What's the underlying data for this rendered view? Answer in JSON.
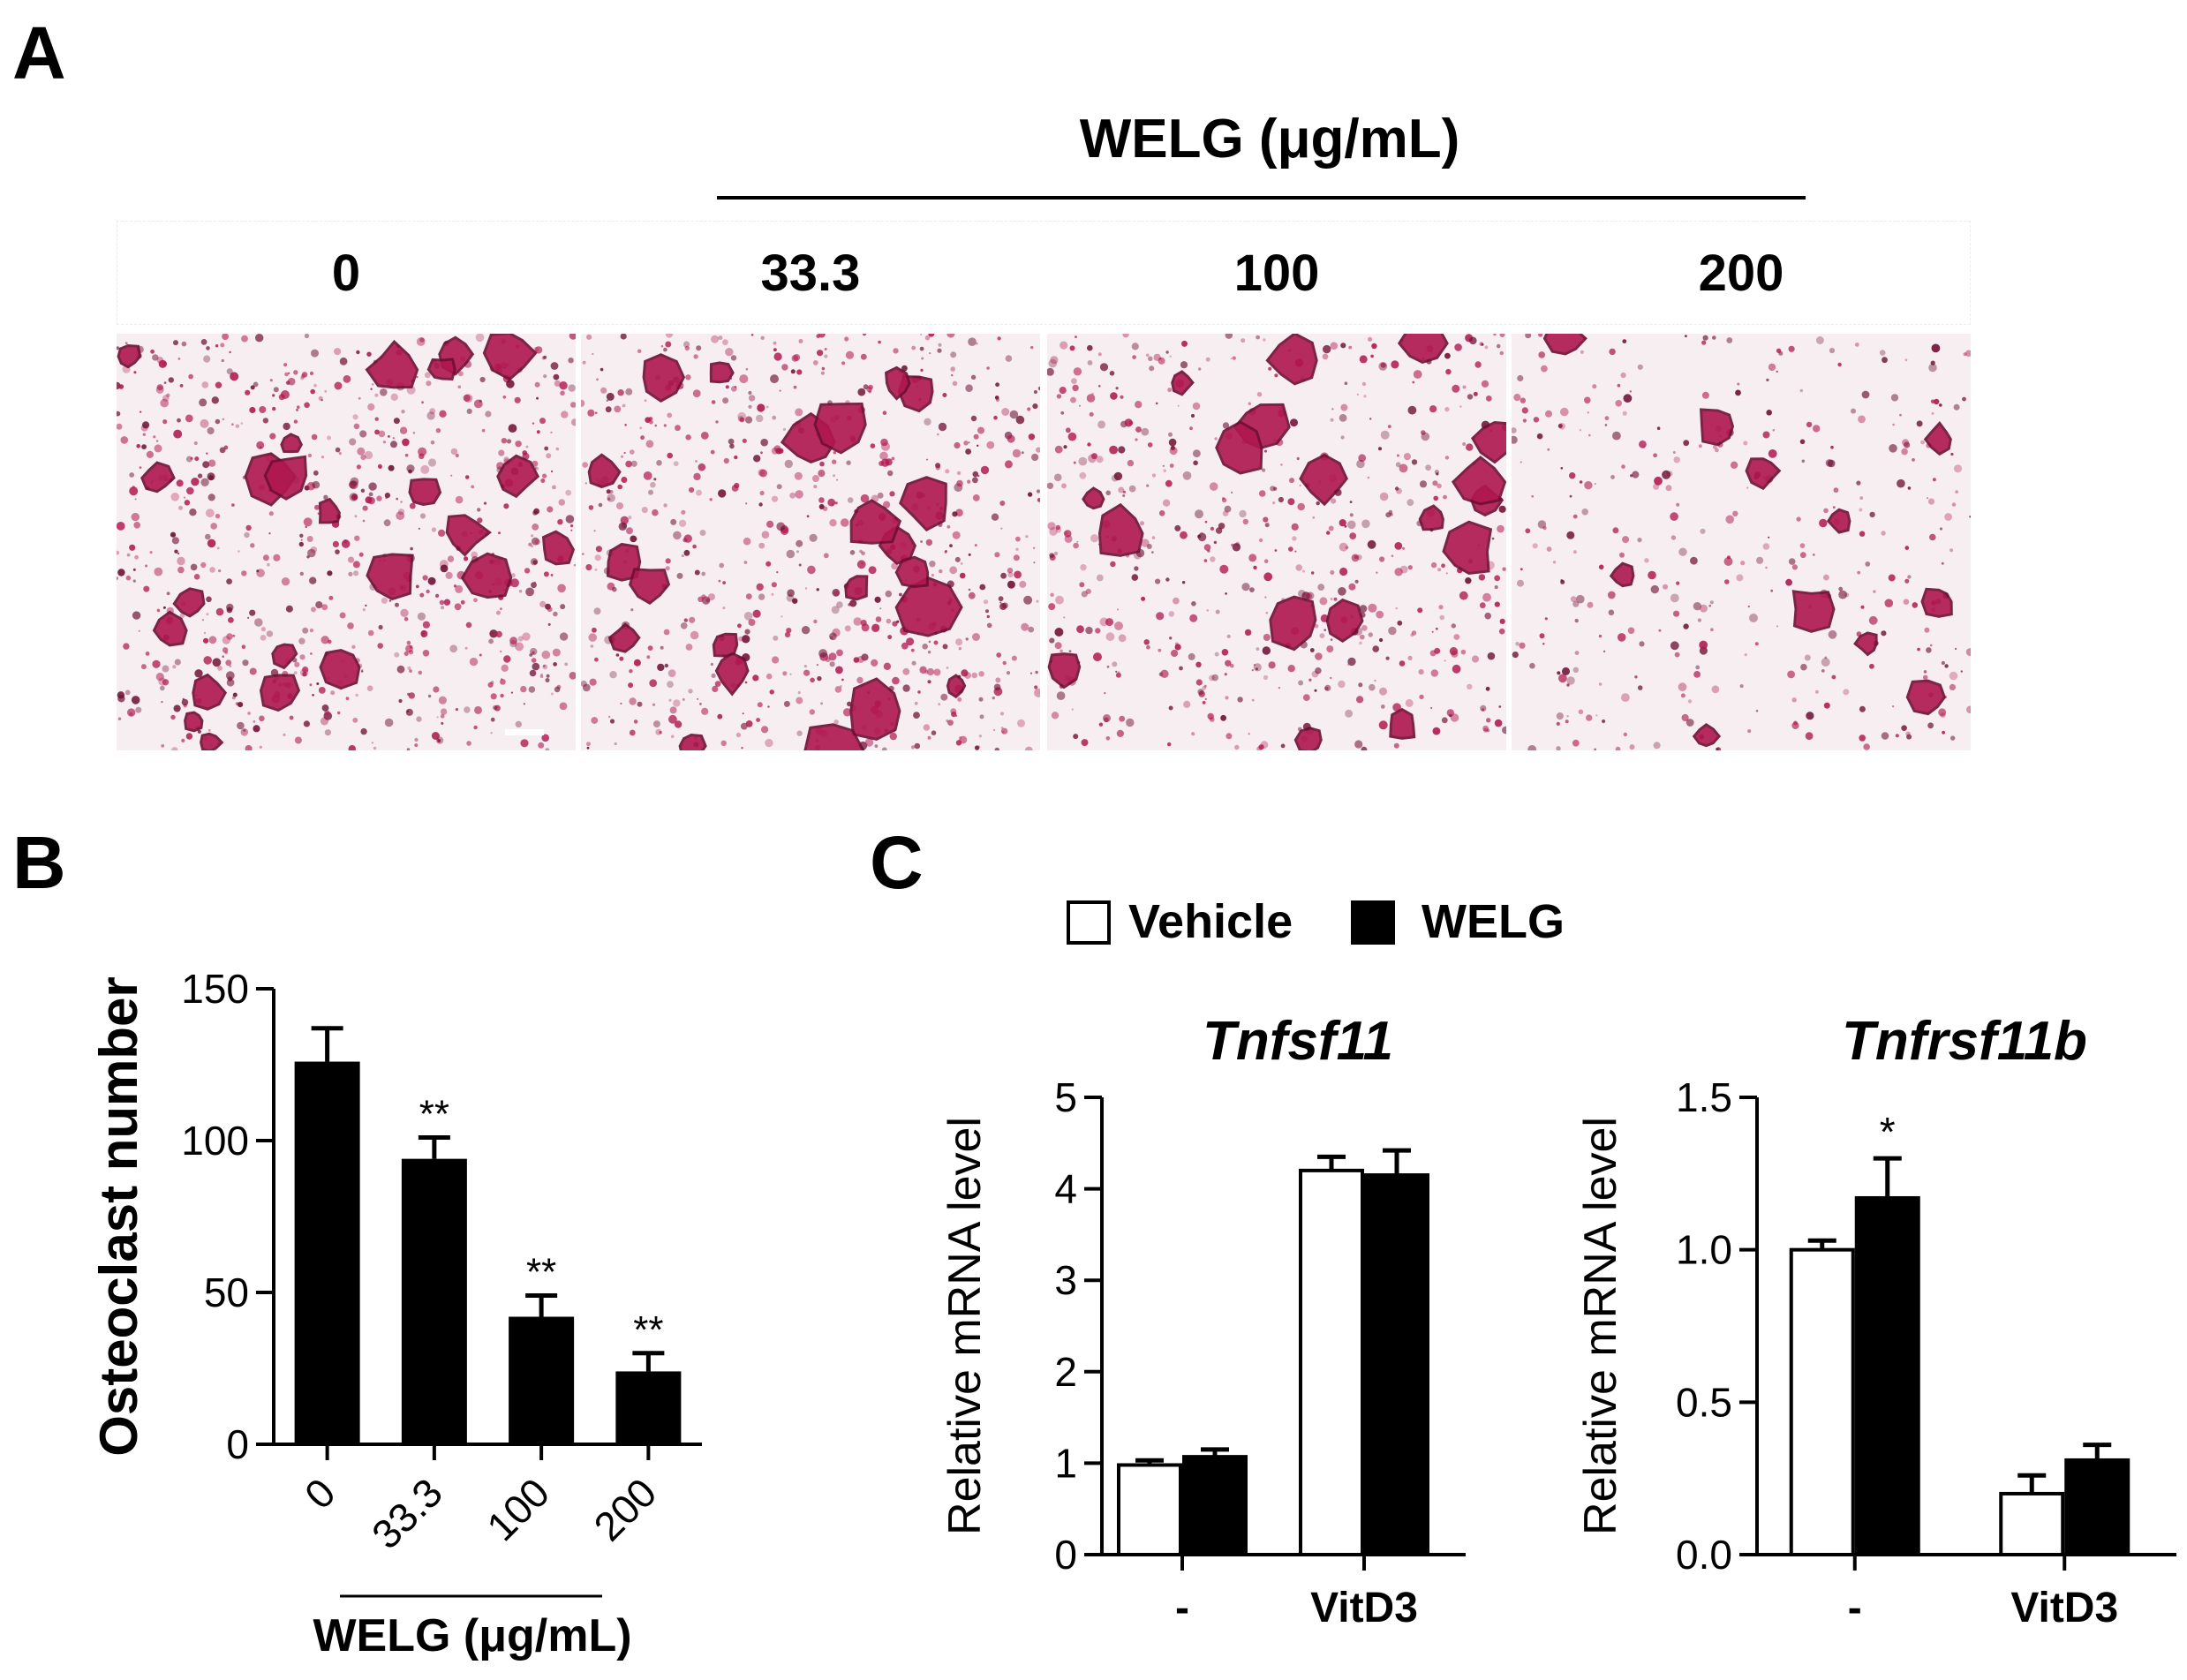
{
  "panels": {
    "A": {
      "letter": "A",
      "treatment_label": "WELG (μg/mL)",
      "conditions": [
        "0",
        "33.3",
        "100",
        "200"
      ],
      "staining_density": [
        0.85,
        0.8,
        0.65,
        0.4
      ]
    },
    "B": {
      "letter": "B"
    },
    "C": {
      "letter": "C"
    }
  },
  "legend": {
    "vehicle": "Vehicle",
    "welg": "WELG"
  },
  "colors": {
    "stain": "#b0174f",
    "stain_dark": "#6e0f33",
    "background": "#f6eef1"
  },
  "chart_data": [
    {
      "id": "B",
      "type": "bar",
      "categories": [
        "0",
        "33.3",
        "100",
        "200"
      ],
      "values": [
        126,
        94,
        42,
        24
      ],
      "errors": [
        11,
        7,
        7,
        6
      ],
      "significance": [
        "",
        "**",
        "**",
        "**"
      ],
      "ylabel": "Osteoclast number",
      "xlabel": "WELG (μg/mL)",
      "yticks": [
        "0",
        "50",
        "100",
        "150"
      ],
      "ylim": [
        0,
        150
      ],
      "bar_color": "#000000"
    },
    {
      "id": "C1",
      "type": "bar",
      "title": "Tnfsf11",
      "categories": [
        "-",
        "VitD3"
      ],
      "series": [
        {
          "name": "Vehicle",
          "values": [
            0.98,
            4.2
          ],
          "errors": [
            0.05,
            0.15
          ]
        },
        {
          "name": "WELG",
          "values": [
            1.07,
            4.15
          ],
          "errors": [
            0.08,
            0.27
          ]
        }
      ],
      "significance": [
        [
          "",
          ""
        ],
        [
          "",
          ""
        ]
      ],
      "ylabel": "Relative mRNA level",
      "yticks": [
        "0",
        "1",
        "2",
        "3",
        "4",
        "5"
      ],
      "ylim": [
        0,
        5
      ]
    },
    {
      "id": "C2",
      "type": "bar",
      "title": "Tnfrsf11b",
      "categories": [
        "-",
        "VitD3"
      ],
      "series": [
        {
          "name": "Vehicle",
          "values": [
            1.0,
            0.2
          ],
          "errors": [
            0.03,
            0.06
          ]
        },
        {
          "name": "WELG",
          "values": [
            1.17,
            0.31
          ],
          "errors": [
            0.13,
            0.05
          ]
        }
      ],
      "significance": [
        [
          "",
          "*"
        ],
        [
          "",
          ""
        ]
      ],
      "ylabel": "Relative mRNA level",
      "yticks": [
        "0.0",
        "0.5",
        "1.0",
        "1.5"
      ],
      "ylim": [
        0,
        1.5
      ]
    }
  ]
}
